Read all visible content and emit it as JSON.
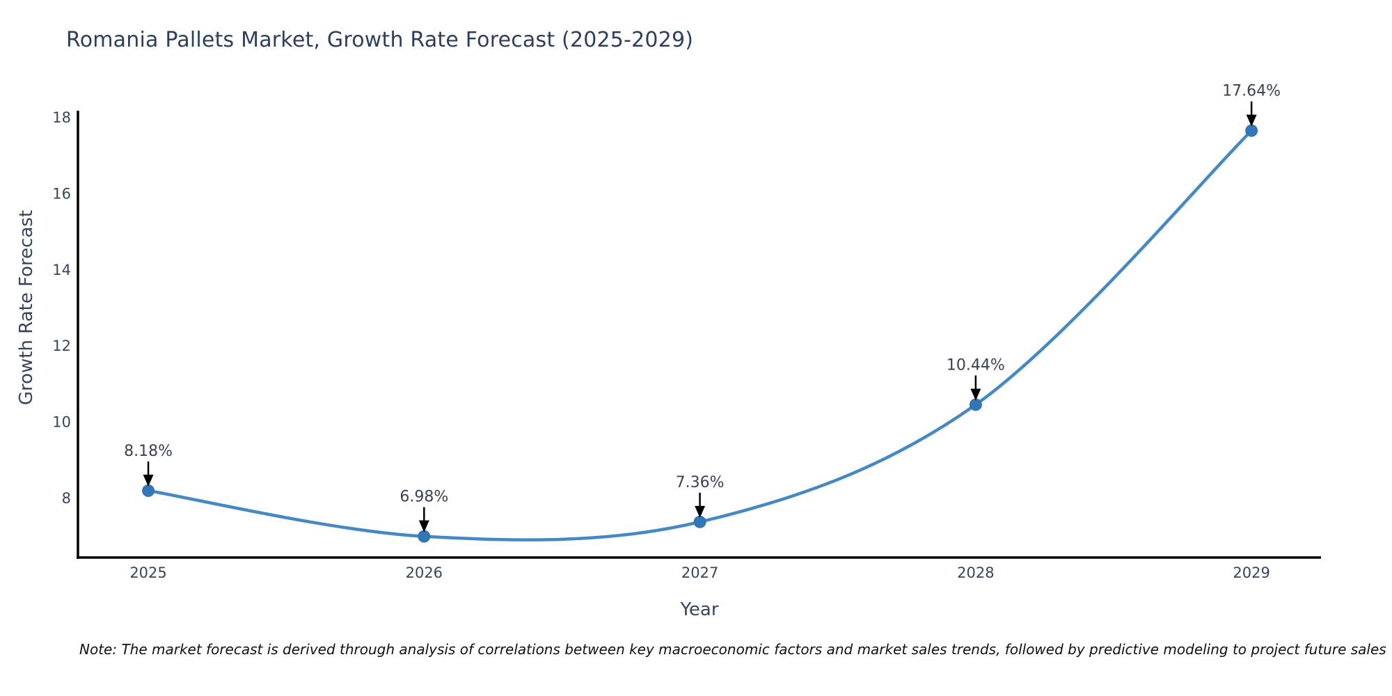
{
  "chart_data": {
    "type": "line",
    "title": "Romania Pallets Market, Growth Rate Forecast (2025-2029)",
    "xlabel": "Year",
    "ylabel": "Growth Rate Forecast",
    "x": [
      2025,
      2026,
      2027,
      2028,
      2029
    ],
    "y": [
      8.18,
      6.98,
      7.36,
      10.44,
      17.64
    ],
    "point_labels": [
      "8.18%",
      "6.98%",
      "7.36%",
      "10.44%",
      "17.64%"
    ],
    "xticks": [
      "2025",
      "2026",
      "2027",
      "2028",
      "2029"
    ],
    "yticks": [
      8,
      10,
      12,
      14,
      16,
      18
    ],
    "xlim": [
      2024.745,
      2029.252
    ],
    "ylim": [
      6.425,
      18.165
    ],
    "grid": false,
    "legend": "none",
    "line_color": "#4488c4",
    "marker_color": "#3276b5",
    "axis_color": "#000000",
    "arrow_color": "#000000",
    "note": "Note: The market forecast is derived through analysis of correlations between key macroeconomic factors and market sales trends, followed by predictive modeling to project future sales"
  }
}
